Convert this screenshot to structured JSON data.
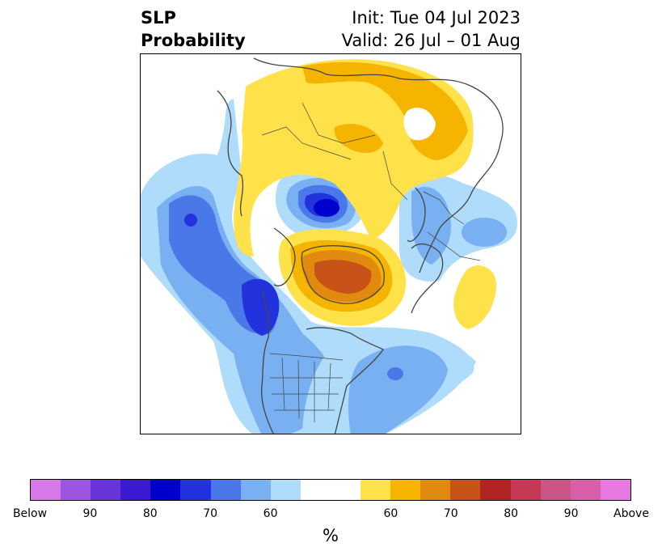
{
  "title": {
    "left_line1": "SLP",
    "left_line2": "Probability",
    "right_line1": "Init: Tue 04 Jul 2023",
    "right_line2": "Valid: 26 Jul – 01 Aug"
  },
  "colorbar": {
    "colors": [
      "#d878e8",
      "#9b55e0",
      "#6a35d8",
      "#3c1ad4",
      "#0000cc",
      "#2233dd",
      "#4a78e8",
      "#78b0f2",
      "#aedcfa",
      "#ffffff",
      "#ffffff",
      "#ffe14a",
      "#f4b400",
      "#e08a10",
      "#c85318",
      "#b02424",
      "#c43a55",
      "#cc5588",
      "#da5faa",
      "#e878e0"
    ],
    "ticks": [
      "Below",
      "90",
      "80",
      "70",
      "60",
      "60",
      "70",
      "80",
      "90",
      "Above"
    ],
    "unit_label": "%"
  },
  "map": {
    "colors": {
      "yellow": "#ffe14a",
      "orange": "#f4b400",
      "dark_orange": "#e08a10",
      "rust": "#c85318",
      "lightblue": "#aedcfa",
      "midblue": "#78b0f2",
      "blue": "#4a78e8",
      "royal": "#2233dd",
      "deepblue": "#0000cc",
      "coast": "#444444"
    }
  }
}
